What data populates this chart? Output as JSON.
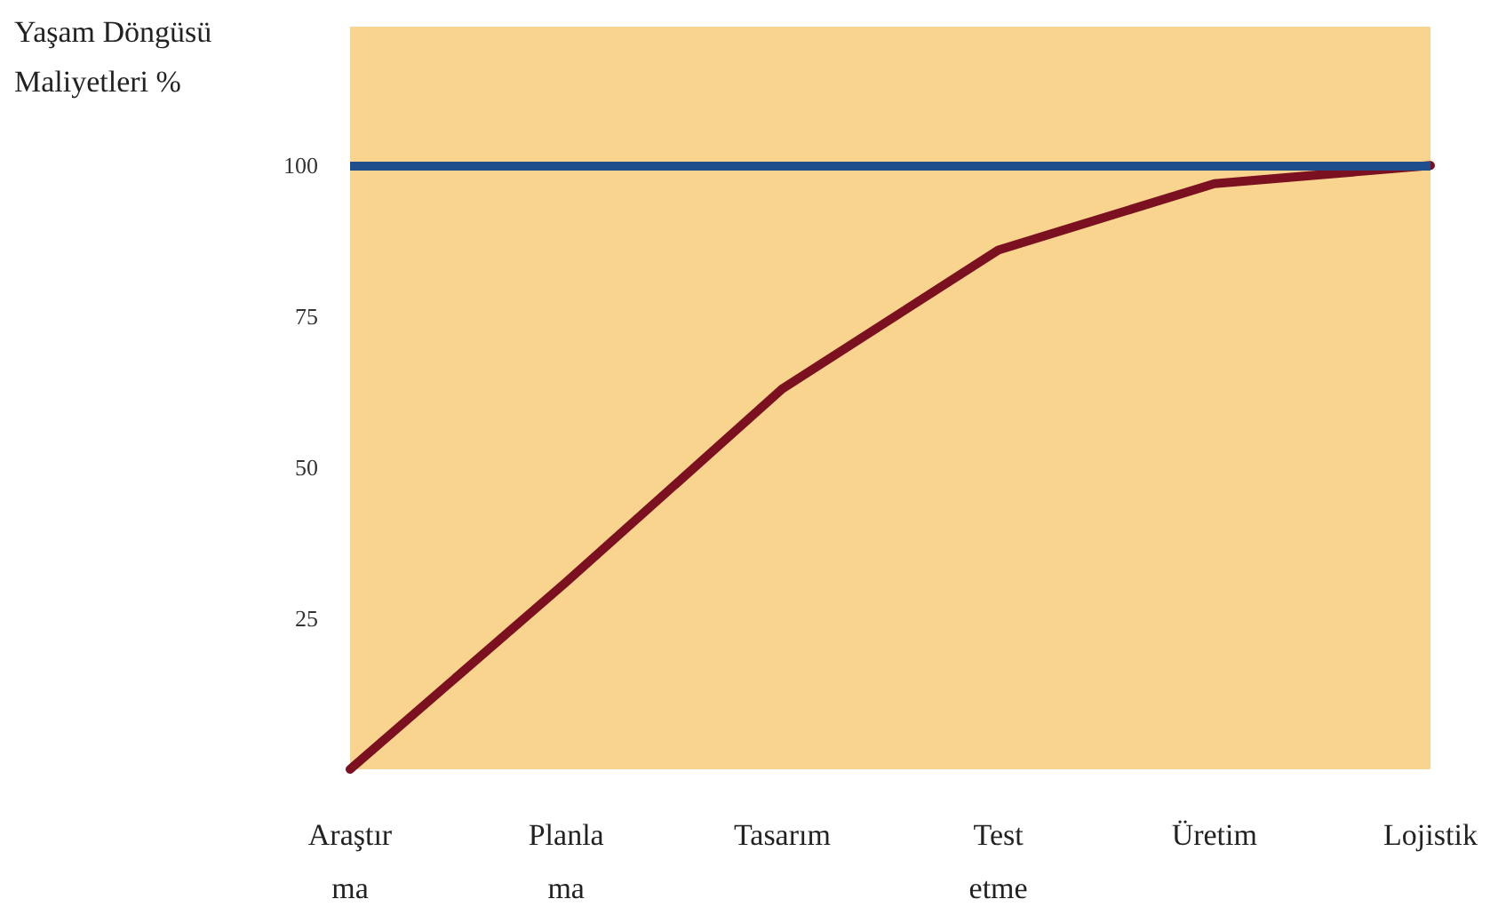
{
  "chart_data": {
    "type": "line",
    "ylabel": "Yaşam Döngüsü\nMaliyetleri %",
    "categories": [
      "Araştır\nma",
      "Planla\nma",
      "Tasarım",
      "Test\netme",
      "Üretim",
      "Lojistik"
    ],
    "series": [
      {
        "color": "#7b1020",
        "values": [
          0,
          31,
          63,
          86,
          97,
          100
        ]
      }
    ],
    "ylim": [
      0,
      123
    ],
    "yticks": [
      25,
      50,
      75,
      100
    ],
    "ref_lines": [
      {
        "axis": "y",
        "value": 100,
        "color": "#1f4e8c"
      }
    ],
    "grid": false,
    "marker": "none",
    "line_style": "solid"
  }
}
